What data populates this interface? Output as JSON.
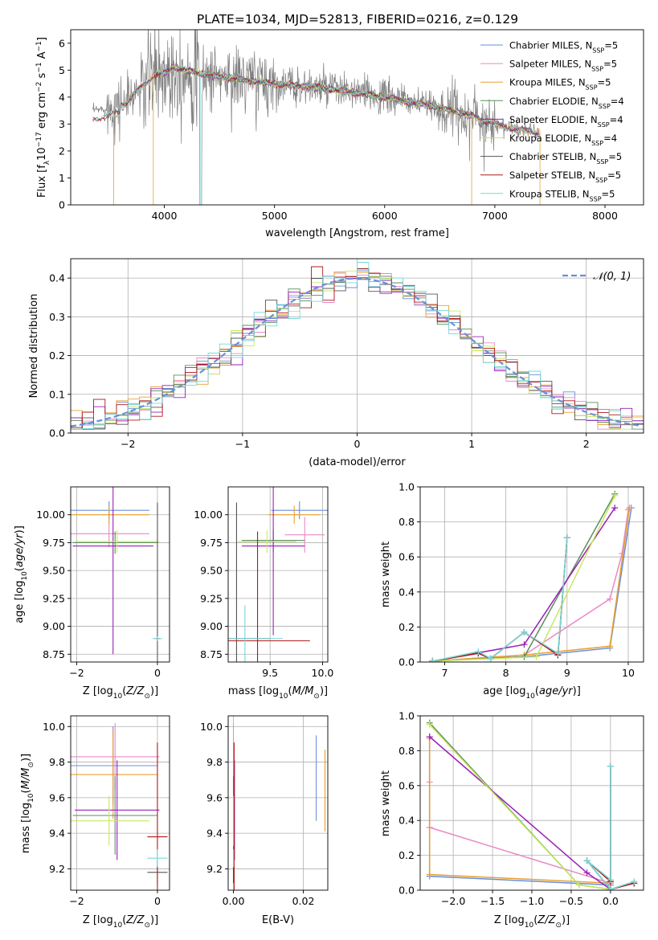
{
  "figure": {
    "title": "PLATE=1034, MJD=52813, FIBERID=0216, z=0.129"
  },
  "colors": {
    "Chabrier MILES": "#6a8fd8",
    "Salpeter MILES": "#e88ac6",
    "Kroupa MILES": "#e8a030",
    "Chabrier ELODIE": "#5a8f5a",
    "Salpeter ELODIE": "#9a1fb8",
    "Kroupa ELODIE": "#c8e860",
    "Chabrier STELIB": "#555555",
    "Salpeter STELIB": "#b01818",
    "Kroupa STELIB": "#78d8d8",
    "data": "#808080",
    "normal_curve": "#6a8fd8"
  },
  "chart_data": [
    {
      "id": "spectrum",
      "type": "line",
      "title": "PLATE=1034, MJD=52813, FIBERID=0216, z=0.129",
      "xlabel": "wavelength [Angstrom, rest frame]",
      "ylabel": "Flux [f_λ 10^-17 erg cm^-2 s^-1 A^-1]",
      "xlim": [
        3150,
        8350
      ],
      "ylim": [
        0,
        6.5
      ],
      "xticks": [
        4000,
        5000,
        6000,
        7000,
        8000
      ],
      "yticks": [
        0,
        1,
        2,
        3,
        4,
        5,
        6
      ],
      "grid": false,
      "legend_position": "top-right",
      "legend": [
        {
          "main": "Chabrier MILES, N",
          "sub": "SSP",
          "tail": "=5",
          "series": "Chabrier MILES"
        },
        {
          "main": "Salpeter MILES, N",
          "sub": "SSP",
          "tail": "=5",
          "series": "Salpeter MILES"
        },
        {
          "main": "Kroupa MILES, N",
          "sub": "SSP",
          "tail": "=5",
          "series": "Kroupa MILES"
        },
        {
          "main": "Chabrier ELODIE, N",
          "sub": "SSP",
          "tail": "=4",
          "series": "Chabrier ELODIE"
        },
        {
          "main": "Salpeter ELODIE, N",
          "sub": "SSP",
          "tail": "=4",
          "series": "Salpeter ELODIE"
        },
        {
          "main": "Kroupa ELODIE, N",
          "sub": "SSP",
          "tail": "=4",
          "series": "Kroupa ELODIE"
        },
        {
          "main": "Chabrier STELIB, N",
          "sub": "SSP",
          "tail": "=5",
          "series": "Chabrier STELIB"
        },
        {
          "main": "Salpeter STELIB, N",
          "sub": "SSP",
          "tail": "=5",
          "series": "Salpeter STELIB"
        },
        {
          "main": "Kroupa STELIB, N",
          "sub": "SSP",
          "tail": "=5",
          "series": "Kroupa STELIB"
        }
      ],
      "continuum": {
        "wavelength": [
          3350,
          3500,
          3650,
          3800,
          3900,
          4000,
          4100,
          4300,
          4600,
          5000,
          5500,
          6000,
          6500,
          6800,
          7000,
          7200,
          7400
        ],
        "flux": [
          3.5,
          3.6,
          3.8,
          4.4,
          4.8,
          4.9,
          5.1,
          4.9,
          4.7,
          4.5,
          4.3,
          4.0,
          3.6,
          3.3,
          3.0,
          2.8,
          2.7
        ]
      }
    },
    {
      "id": "residual_histogram",
      "type": "line",
      "xlabel": "(data-model)/error",
      "ylabel": "Normed distribution",
      "xlim": [
        -2.5,
        2.5
      ],
      "ylim": [
        0,
        0.45
      ],
      "xticks": [
        -2,
        -1,
        0,
        1,
        2
      ],
      "yticks": [
        0.0,
        0.1,
        0.2,
        0.3,
        0.4
      ],
      "grid": true,
      "legend_position": "top-right",
      "legend": [
        {
          "label": "𝒩(0, 1)",
          "series": "normal_curve",
          "style": "dashed"
        }
      ],
      "bins": {
        "start": -2.5,
        "width": 0.1,
        "count": 50
      }
    },
    {
      "id": "age_vs_Z",
      "type": "scatter",
      "xlabel": "Z [log10(Z/Z⊙)]",
      "ylabel": "age [log10(age/yr)]",
      "xlim": [
        -2.15,
        0.3
      ],
      "ylim": [
        8.68,
        10.25
      ],
      "xticks": [
        -2,
        0
      ],
      "yticks": [
        8.75,
        9.0,
        9.25,
        9.5,
        9.75,
        10.0
      ],
      "grid": true,
      "points": [
        {
          "series": "Chabrier MILES",
          "x": -1.2,
          "xerr": 1.0,
          "y": 10.04,
          "yerr": 0.08
        },
        {
          "series": "Salpeter MILES",
          "x": -1.2,
          "xerr": 1.0,
          "y": 9.83,
          "yerr": 0.12
        },
        {
          "series": "Kroupa MILES",
          "x": -1.2,
          "xerr": 1.0,
          "y": 10.0,
          "yerr": 0.08
        },
        {
          "series": "Chabrier ELODIE",
          "x": -1.05,
          "xerr": 1.05,
          "y": 9.75,
          "yerr": 0.1
        },
        {
          "series": "Salpeter ELODIE",
          "x": -1.1,
          "xerr": 1.0,
          "y": 9.72,
          "yerr": 0.97
        },
        {
          "series": "Kroupa ELODIE",
          "x": -1.0,
          "xerr": 1.05,
          "y": 9.76,
          "yerr": 0.1
        },
        {
          "series": "Chabrier STELIB",
          "x": 0.0,
          "xerr": 0.05,
          "y": 8.89,
          "yerr": 1.22
        },
        {
          "series": "Salpeter STELIB",
          "x": 0.0,
          "xerr": 0.05,
          "y": 8.89,
          "yerr": 0.02
        },
        {
          "series": "Kroupa STELIB",
          "x": 0.0,
          "xerr": 0.12,
          "y": 8.89,
          "yerr": 0.02
        }
      ]
    },
    {
      "id": "age_vs_mass",
      "type": "scatter",
      "xlabel": "mass [log10(M/M⊙)]",
      "ylabel": "",
      "xlim": [
        9.1,
        10.05
      ],
      "ylim": [
        8.68,
        10.25
      ],
      "xticks": [
        9.5,
        10.0
      ],
      "yticks": [
        8.75,
        9.0,
        9.25,
        9.5,
        9.75,
        10.0
      ],
      "grid": true,
      "points": [
        {
          "series": "Chabrier MILES",
          "x": 9.78,
          "xerr": 0.27,
          "y": 10.04,
          "yerr": 0.08
        },
        {
          "series": "Salpeter MILES",
          "x": 9.83,
          "xerr": 0.19,
          "y": 9.82,
          "yerr": 0.16
        },
        {
          "series": "Kroupa MILES",
          "x": 9.73,
          "xerr": 0.25,
          "y": 10.0,
          "yerr": 0.08
        },
        {
          "series": "Chabrier ELODIE",
          "x": 9.53,
          "xerr": 0.3,
          "y": 9.77,
          "yerr": 0.1
        },
        {
          "series": "Salpeter ELODIE",
          "x": 9.53,
          "xerr": 0.3,
          "y": 9.72,
          "yerr": 0.8
        },
        {
          "series": "Kroupa ELODIE",
          "x": 9.47,
          "xerr": 0.28,
          "y": 9.76,
          "yerr": 0.1
        },
        {
          "series": "Chabrier STELIB",
          "x": 9.18,
          "xerr": 0.32,
          "y": 8.89,
          "yerr": 1.22
        },
        {
          "series": "Salpeter STELIB",
          "x": 9.38,
          "xerr": 0.5,
          "y": 8.87,
          "yerr": 0.98
        },
        {
          "series": "Kroupa STELIB",
          "x": 9.26,
          "xerr": 0.36,
          "y": 8.89,
          "yerr": 0.3
        }
      ]
    },
    {
      "id": "mass_weight_vs_age",
      "type": "line",
      "xlabel": "age [log10(age/yr)]",
      "ylabel": "mass weight",
      "xlim": [
        6.6,
        10.25
      ],
      "ylim": [
        0,
        1.0
      ],
      "xticks": [
        7,
        8,
        9,
        10
      ],
      "yticks": [
        0.0,
        0.2,
        0.4,
        0.6,
        0.8,
        1.0
      ],
      "grid": true,
      "series": [
        {
          "series": "Chabrier MILES",
          "x": [
            6.8,
            8.3,
            9.7,
            10.05
          ],
          "y": [
            0.005,
            0.03,
            0.08,
            0.88
          ]
        },
        {
          "series": "Salpeter MILES",
          "x": [
            6.8,
            8.3,
            9.7,
            9.9,
            10.0
          ],
          "y": [
            0.005,
            0.04,
            0.36,
            0.62,
            0.87
          ]
        },
        {
          "series": "Kroupa MILES",
          "x": [
            6.8,
            8.3,
            9.7,
            10.02
          ],
          "y": [
            0.005,
            0.04,
            0.09,
            0.88
          ]
        },
        {
          "series": "Chabrier ELODIE",
          "x": [
            6.8,
            8.3,
            9.78
          ],
          "y": [
            0.005,
            0.03,
            0.96
          ]
        },
        {
          "series": "Salpeter ELODIE",
          "x": [
            6.8,
            8.3,
            9.78
          ],
          "y": [
            0.005,
            0.1,
            0.88
          ]
        },
        {
          "series": "Kroupa ELODIE",
          "x": [
            6.8,
            8.5,
            9.78
          ],
          "y": [
            0.005,
            0.03,
            0.95
          ]
        },
        {
          "series": "Chabrier STELIB",
          "x": [
            6.8,
            7.55,
            7.75,
            8.3,
            8.85,
            9.0
          ],
          "y": [
            0.005,
            0.05,
            0.02,
            0.17,
            0.04,
            0.71
          ]
        },
        {
          "series": "Salpeter STELIB",
          "x": [
            6.8,
            7.55,
            7.75,
            8.3,
            8.85,
            9.0
          ],
          "y": [
            0.005,
            0.05,
            0.02,
            0.17,
            0.04,
            0.71
          ]
        },
        {
          "series": "Kroupa STELIB",
          "x": [
            6.8,
            7.55,
            7.75,
            8.3,
            8.85,
            9.0
          ],
          "y": [
            0.005,
            0.06,
            0.02,
            0.17,
            0.05,
            0.71
          ]
        }
      ]
    },
    {
      "id": "mass_vs_Z",
      "type": "scatter",
      "xlabel": "Z [log10(Z/Z⊙)]",
      "ylabel": "mass [log10(M/M⊙)]",
      "xlim": [
        -2.15,
        0.3
      ],
      "ylim": [
        9.08,
        10.06
      ],
      "xticks": [
        -2,
        0
      ],
      "yticks": [
        9.2,
        9.4,
        9.6,
        9.8,
        10.0
      ],
      "grid": true,
      "points": [
        {
          "series": "Chabrier MILES",
          "x": -1.1,
          "xerr": 1.1,
          "y": 9.78,
          "yerr": 0.22
        },
        {
          "series": "Salpeter MILES",
          "x": -1.05,
          "xerr": 1.1,
          "y": 9.83,
          "yerr": 0.19
        },
        {
          "series": "Kroupa MILES",
          "x": -1.1,
          "xerr": 1.1,
          "y": 9.73,
          "yerr": 0.25
        },
        {
          "series": "Chabrier ELODIE",
          "x": -1.05,
          "xerr": 1.05,
          "y": 9.5,
          "yerr": 0.22
        },
        {
          "series": "Salpeter ELODIE",
          "x": -1.0,
          "xerr": 1.05,
          "y": 9.53,
          "yerr": 0.28
        },
        {
          "series": "Kroupa ELODIE",
          "x": -1.2,
          "xerr": 1.0,
          "y": 9.47,
          "yerr": 0.14
        },
        {
          "series": "Chabrier STELIB",
          "x": 0.0,
          "xerr": 0.25,
          "y": 9.18,
          "yerr": 0.06
        },
        {
          "series": "Salpeter STELIB",
          "x": 0.0,
          "xerr": 0.25,
          "y": 9.38,
          "yerr": 0.53
        },
        {
          "series": "Kroupa STELIB",
          "x": 0.0,
          "xerr": 0.25,
          "y": 9.26,
          "yerr": 0.05
        }
      ]
    },
    {
      "id": "mass_vs_EBV",
      "type": "scatter",
      "xlabel": "E(B-V)",
      "ylabel": "",
      "xlim": [
        -0.0015,
        0.027
      ],
      "ylim": [
        9.08,
        10.06
      ],
      "xticks": [
        0.0,
        0.02
      ],
      "yticks": [
        9.2,
        9.4,
        9.6,
        9.8,
        10.0
      ],
      "grid": true,
      "points": [
        {
          "series": "Chabrier MILES",
          "x": 0.0237,
          "xerr": 0.0,
          "y": 9.71,
          "yerr": 0.24
        },
        {
          "series": "Salpeter MILES",
          "x": 0.0,
          "xerr": 0.0,
          "y": 9.83,
          "yerr": 0.19
        },
        {
          "series": "Kroupa MILES",
          "x": 0.0262,
          "xerr": 0.0,
          "y": 9.64,
          "yerr": 0.23
        },
        {
          "series": "Chabrier ELODIE",
          "x": 0.0,
          "xerr": 0.0,
          "y": 9.5,
          "yerr": 0.22
        },
        {
          "series": "Salpeter ELODIE",
          "x": 0.0003,
          "xerr": 0.0,
          "y": 9.53,
          "yerr": 0.28
        },
        {
          "series": "Kroupa ELODIE",
          "x": 0.0,
          "xerr": 0.0,
          "y": 9.47,
          "yerr": 0.14
        },
        {
          "series": "Chabrier STELIB",
          "x": 0.0,
          "xerr": 0.0,
          "y": 9.18,
          "yerr": 0.06
        },
        {
          "series": "Salpeter STELIB",
          "x": 0.0002,
          "xerr": 0.0,
          "y": 9.38,
          "yerr": 0.53
        },
        {
          "series": "Kroupa STELIB",
          "x": 0.0,
          "xerr": 0.0,
          "y": 9.26,
          "yerr": 0.05
        }
      ]
    },
    {
      "id": "mass_weight_vs_Z",
      "type": "line",
      "xlabel": "Z [log10(Z/Z⊙)]",
      "ylabel": "mass weight",
      "xlim": [
        -2.42,
        0.42
      ],
      "ylim": [
        0,
        1.0
      ],
      "xticks": [
        -2.0,
        -1.5,
        -1.0,
        -0.5,
        0.0
      ],
      "yticks": [
        0.0,
        0.2,
        0.4,
        0.6,
        0.8,
        1.0
      ],
      "grid": true,
      "series": [
        {
          "series": "Chabrier MILES",
          "x": [
            -2.3,
            -2.3,
            0.0,
            0.0
          ],
          "y": [
            0.88,
            0.08,
            0.03,
            0.005
          ]
        },
        {
          "series": "Salpeter MILES",
          "x": [
            -2.3,
            -2.3,
            -2.3,
            0.0,
            0.0
          ],
          "y": [
            0.87,
            0.62,
            0.36,
            0.04,
            0.005
          ]
        },
        {
          "series": "Kroupa MILES",
          "x": [
            -2.3,
            -2.3,
            0.0,
            0.0
          ],
          "y": [
            0.88,
            0.09,
            0.04,
            0.005
          ]
        },
        {
          "series": "Chabrier ELODIE",
          "x": [
            -2.3,
            -0.4,
            0.0
          ],
          "y": [
            0.96,
            0.03,
            0.005
          ]
        },
        {
          "series": "Salpeter ELODIE",
          "x": [
            -2.3,
            -0.3,
            0.0
          ],
          "y": [
            0.88,
            0.1,
            0.005
          ]
        },
        {
          "series": "Kroupa ELODIE",
          "x": [
            -2.3,
            -0.4,
            0.0
          ],
          "y": [
            0.95,
            0.03,
            0.005
          ]
        },
        {
          "series": "Chabrier STELIB",
          "x": [
            0.0,
            0.0,
            -0.3,
            0.0,
            0.3
          ],
          "y": [
            0.71,
            0.05,
            0.17,
            0.005,
            0.04
          ]
        },
        {
          "series": "Salpeter STELIB",
          "x": [
            0.0,
            0.0,
            -0.3,
            0.0,
            0.3
          ],
          "y": [
            0.71,
            0.05,
            0.17,
            0.005,
            0.04
          ]
        },
        {
          "series": "Kroupa STELIB",
          "x": [
            0.0,
            0.0,
            -0.3,
            0.0,
            0.3
          ],
          "y": [
            0.71,
            0.06,
            0.17,
            0.005,
            0.05
          ]
        }
      ]
    }
  ]
}
